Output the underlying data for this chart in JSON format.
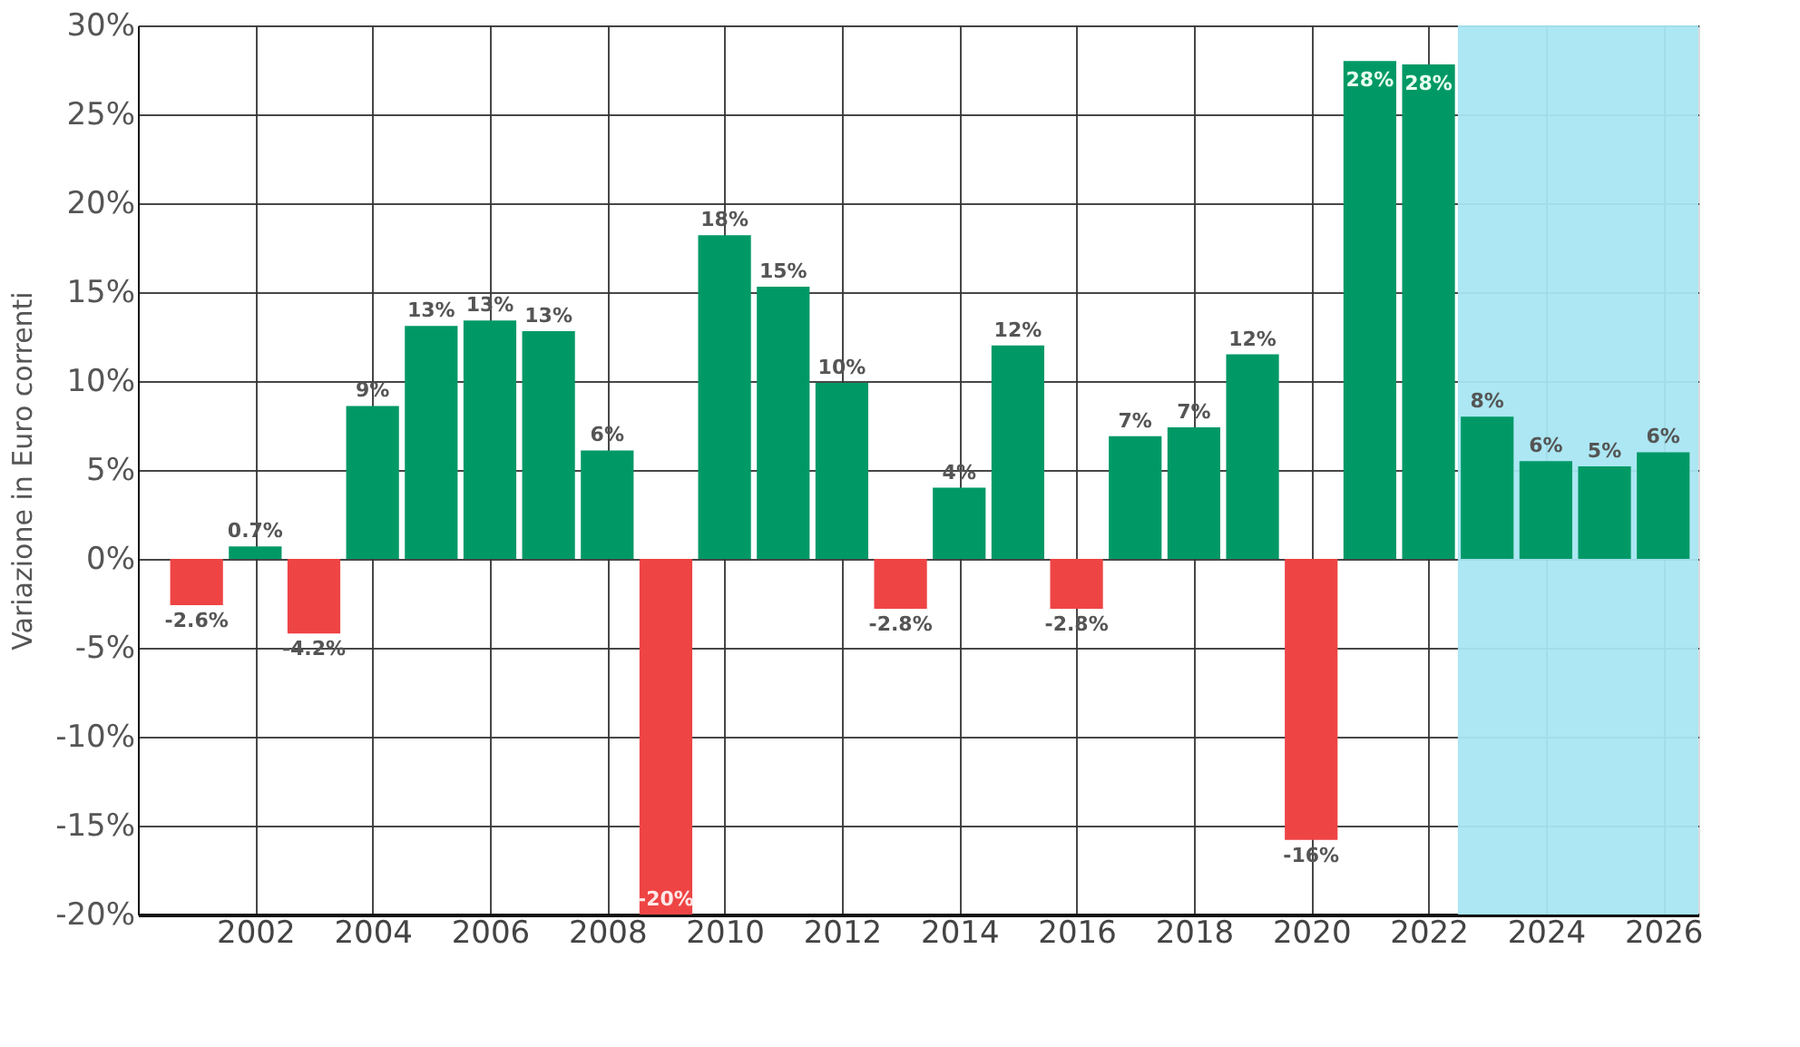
{
  "chart_data": {
    "type": "bar",
    "ylabel": "Variazione in Euro correnti",
    "x": [
      2001,
      2002,
      2003,
      2004,
      2005,
      2006,
      2007,
      2008,
      2009,
      2010,
      2011,
      2012,
      2013,
      2014,
      2015,
      2016,
      2017,
      2018,
      2019,
      2020,
      2021,
      2022,
      2023,
      2024,
      2025,
      2026
    ],
    "values": [
      -2.6,
      0.7,
      -4.2,
      8.6,
      13.1,
      13.4,
      12.8,
      6.1,
      -20,
      18.2,
      15.3,
      9.9,
      -2.8,
      4.0,
      12.0,
      -2.8,
      6.9,
      7.4,
      11.5,
      -15.8,
      28.0,
      27.8,
      8.0,
      5.5,
      5.2,
      6.0
    ],
    "value_labels": [
      "-2.6%",
      "0.7%",
      "-4.2%",
      "9%",
      "13%",
      "13%",
      "13%",
      "6%",
      "-20%",
      "18%",
      "15%",
      "10%",
      "-2.8%",
      "4%",
      "12%",
      "-2.8%",
      "7%",
      "7%",
      "12%",
      "-16%",
      "28%",
      "28%",
      "8%",
      "6%",
      "5%",
      "6%"
    ],
    "colors": [
      "#ee4444",
      "#009966",
      "#ee4444",
      "#009966",
      "#009966",
      "#009966",
      "#009966",
      "#009966",
      "#ee4444",
      "#009966",
      "#009966",
      "#009966",
      "#ee4444",
      "#009966",
      "#009966",
      "#ee4444",
      "#009966",
      "#009966",
      "#009966",
      "#ee4444",
      "#009966",
      "#009966",
      "#009966",
      "#009966",
      "#009966",
      "#009966"
    ],
    "xlim": [
      2000,
      2026.6
    ],
    "xticks": [
      2002,
      2004,
      2006,
      2008,
      2010,
      2012,
      2014,
      2016,
      2018,
      2020,
      2022,
      2024,
      2026
    ],
    "ylim": [
      -20,
      30
    ],
    "yticks": [
      {
        "value": -20,
        "label": "-20%"
      },
      {
        "value": -15,
        "label": "-15%"
      },
      {
        "value": -10,
        "label": "-10%"
      },
      {
        "value": -5,
        "label": "-5%"
      },
      {
        "value": 0,
        "label": "0%"
      },
      {
        "value": 5,
        "label": "5%"
      },
      {
        "value": 10,
        "label": "10%"
      },
      {
        "value": 15,
        "label": "15%"
      },
      {
        "value": 20,
        "label": "20%"
      },
      {
        "value": 25,
        "label": "25%"
      },
      {
        "value": 30,
        "label": "30%"
      }
    ],
    "bands": [
      {
        "axis": "x",
        "from": 2022.5,
        "to": 2026.6,
        "label": null,
        "color": "#a8e6f2"
      }
    ],
    "grid": true
  }
}
